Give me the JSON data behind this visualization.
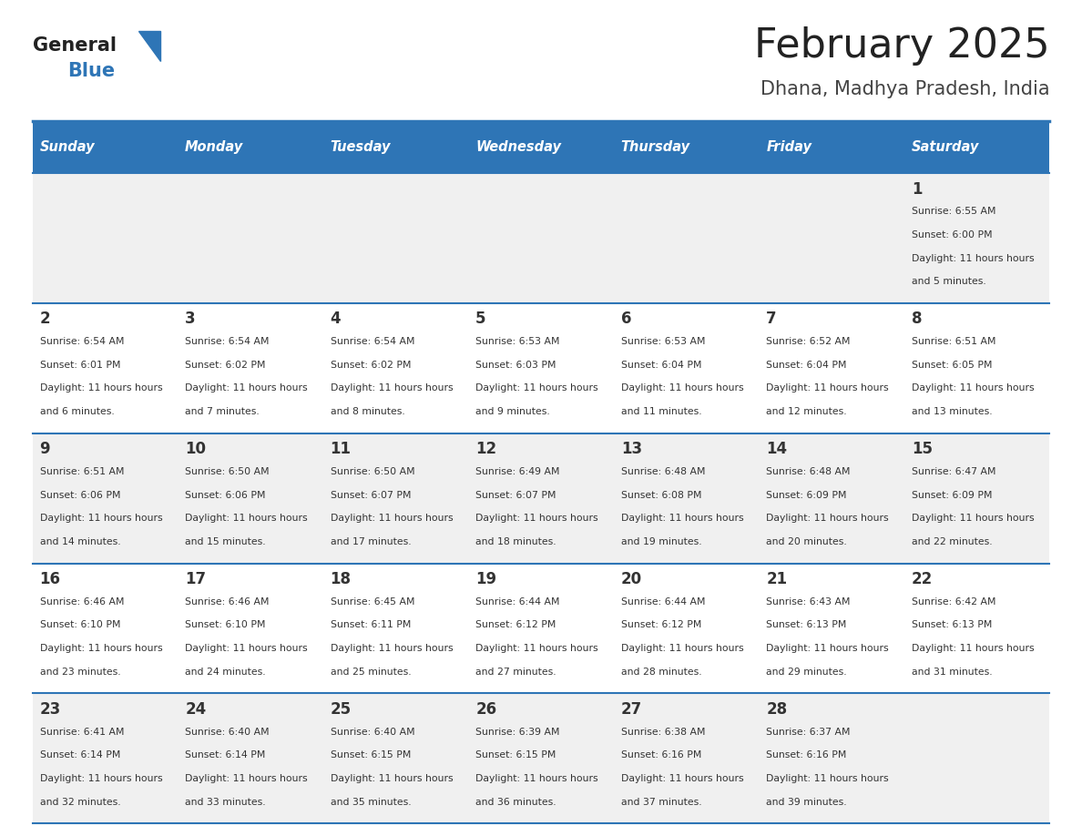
{
  "title": "February 2025",
  "subtitle": "Dhana, Madhya Pradesh, India",
  "header_bg_color": "#2E75B6",
  "header_text_color": "#FFFFFF",
  "weekdays": [
    "Sunday",
    "Monday",
    "Tuesday",
    "Wednesday",
    "Thursday",
    "Friday",
    "Saturday"
  ],
  "bg_color": "#FFFFFF",
  "cell_bg_even": "#F0F0F0",
  "cell_bg_odd": "#FFFFFF",
  "separator_color": "#2E75B6",
  "day_number_color": "#333333",
  "cell_text_color": "#333333",
  "title_color": "#222222",
  "subtitle_color": "#444444",
  "logo_general_color": "#222222",
  "logo_blue_color": "#2E75B6",
  "calendar": [
    [
      null,
      null,
      null,
      null,
      null,
      null,
      {
        "day": 1,
        "sunrise": "6:55 AM",
        "sunset": "6:00 PM",
        "daylight": "11 hours and 5 minutes"
      }
    ],
    [
      {
        "day": 2,
        "sunrise": "6:54 AM",
        "sunset": "6:01 PM",
        "daylight": "11 hours and 6 minutes"
      },
      {
        "day": 3,
        "sunrise": "6:54 AM",
        "sunset": "6:02 PM",
        "daylight": "11 hours and 7 minutes"
      },
      {
        "day": 4,
        "sunrise": "6:54 AM",
        "sunset": "6:02 PM",
        "daylight": "11 hours and 8 minutes"
      },
      {
        "day": 5,
        "sunrise": "6:53 AM",
        "sunset": "6:03 PM",
        "daylight": "11 hours and 9 minutes"
      },
      {
        "day": 6,
        "sunrise": "6:53 AM",
        "sunset": "6:04 PM",
        "daylight": "11 hours and 11 minutes"
      },
      {
        "day": 7,
        "sunrise": "6:52 AM",
        "sunset": "6:04 PM",
        "daylight": "11 hours and 12 minutes"
      },
      {
        "day": 8,
        "sunrise": "6:51 AM",
        "sunset": "6:05 PM",
        "daylight": "11 hours and 13 minutes"
      }
    ],
    [
      {
        "day": 9,
        "sunrise": "6:51 AM",
        "sunset": "6:06 PM",
        "daylight": "11 hours and 14 minutes"
      },
      {
        "day": 10,
        "sunrise": "6:50 AM",
        "sunset": "6:06 PM",
        "daylight": "11 hours and 15 minutes"
      },
      {
        "day": 11,
        "sunrise": "6:50 AM",
        "sunset": "6:07 PM",
        "daylight": "11 hours and 17 minutes"
      },
      {
        "day": 12,
        "sunrise": "6:49 AM",
        "sunset": "6:07 PM",
        "daylight": "11 hours and 18 minutes"
      },
      {
        "day": 13,
        "sunrise": "6:48 AM",
        "sunset": "6:08 PM",
        "daylight": "11 hours and 19 minutes"
      },
      {
        "day": 14,
        "sunrise": "6:48 AM",
        "sunset": "6:09 PM",
        "daylight": "11 hours and 20 minutes"
      },
      {
        "day": 15,
        "sunrise": "6:47 AM",
        "sunset": "6:09 PM",
        "daylight": "11 hours and 22 minutes"
      }
    ],
    [
      {
        "day": 16,
        "sunrise": "6:46 AM",
        "sunset": "6:10 PM",
        "daylight": "11 hours and 23 minutes"
      },
      {
        "day": 17,
        "sunrise": "6:46 AM",
        "sunset": "6:10 PM",
        "daylight": "11 hours and 24 minutes"
      },
      {
        "day": 18,
        "sunrise": "6:45 AM",
        "sunset": "6:11 PM",
        "daylight": "11 hours and 25 minutes"
      },
      {
        "day": 19,
        "sunrise": "6:44 AM",
        "sunset": "6:12 PM",
        "daylight": "11 hours and 27 minutes"
      },
      {
        "day": 20,
        "sunrise": "6:44 AM",
        "sunset": "6:12 PM",
        "daylight": "11 hours and 28 minutes"
      },
      {
        "day": 21,
        "sunrise": "6:43 AM",
        "sunset": "6:13 PM",
        "daylight": "11 hours and 29 minutes"
      },
      {
        "day": 22,
        "sunrise": "6:42 AM",
        "sunset": "6:13 PM",
        "daylight": "11 hours and 31 minutes"
      }
    ],
    [
      {
        "day": 23,
        "sunrise": "6:41 AM",
        "sunset": "6:14 PM",
        "daylight": "11 hours and 32 minutes"
      },
      {
        "day": 24,
        "sunrise": "6:40 AM",
        "sunset": "6:14 PM",
        "daylight": "11 hours and 33 minutes"
      },
      {
        "day": 25,
        "sunrise": "6:40 AM",
        "sunset": "6:15 PM",
        "daylight": "11 hours and 35 minutes"
      },
      {
        "day": 26,
        "sunrise": "6:39 AM",
        "sunset": "6:15 PM",
        "daylight": "11 hours and 36 minutes"
      },
      {
        "day": 27,
        "sunrise": "6:38 AM",
        "sunset": "6:16 PM",
        "daylight": "11 hours and 37 minutes"
      },
      {
        "day": 28,
        "sunrise": "6:37 AM",
        "sunset": "6:16 PM",
        "daylight": "11 hours and 39 minutes"
      },
      null
    ]
  ]
}
